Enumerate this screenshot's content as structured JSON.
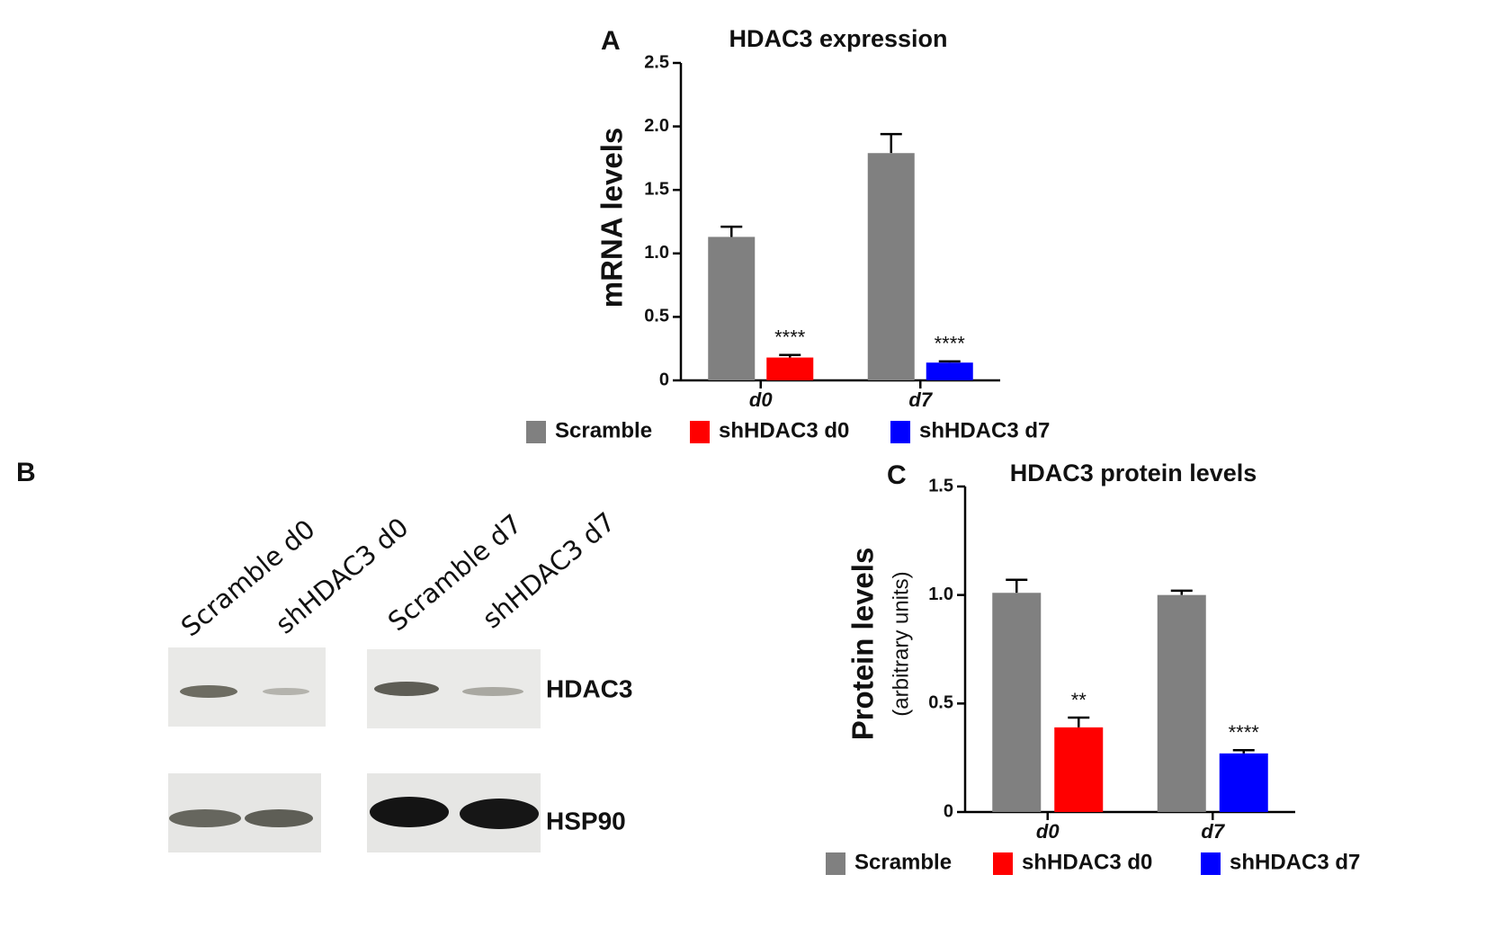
{
  "chart_data": [
    {
      "type": "bar",
      "panel_label": "A",
      "title": "HDAC3 expression",
      "y_label": "mRNA levels",
      "categories": [
        "d0",
        "d7"
      ],
      "series": [
        {
          "name": "Scramble",
          "color": "#808080",
          "values": [
            1.13,
            1.79
          ],
          "errors": [
            0.08,
            0.15
          ],
          "significance": [
            null,
            null
          ]
        },
        {
          "name": "shHDAC3 d0",
          "color": "#ff0000",
          "values": [
            0.18,
            null
          ],
          "errors": [
            0.02,
            null
          ],
          "significance": [
            "****",
            null
          ]
        },
        {
          "name": "shHDAC3 d7",
          "color": "#0000ff",
          "values": [
            null,
            0.14
          ],
          "errors": [
            null,
            0.01
          ],
          "significance": [
            null,
            "****"
          ]
        }
      ],
      "ylim": [
        0,
        2.5
      ],
      "yticks": [
        0,
        0.5,
        {
          "value": 1,
          "label": "1.0"
        },
        1.5,
        {
          "value": 2,
          "label": "2.0"
        },
        2.5
      ]
    },
    {
      "type": "bar",
      "panel_label": "C",
      "title": "HDAC3 protein levels",
      "y_label": "Protein levels",
      "y_sublabel": "(arbitrary units)",
      "categories": [
        "d0",
        "d7"
      ],
      "series": [
        {
          "name": "Scramble",
          "color": "#808080",
          "values": [
            1.01,
            1.0
          ],
          "errors": [
            0.06,
            0.02
          ],
          "significance": [
            null,
            null
          ]
        },
        {
          "name": "shHDAC3 d0",
          "color": "#ff0000",
          "values": [
            0.39,
            null
          ],
          "errors": [
            0.045,
            null
          ],
          "significance": [
            "**",
            null
          ]
        },
        {
          "name": "shHDAC3 d7",
          "color": "#0000ff",
          "values": [
            null,
            0.27
          ],
          "errors": [
            null,
            0.015
          ],
          "significance": [
            null,
            "****"
          ]
        }
      ],
      "ylim": [
        0,
        1.5
      ],
      "yticks": [
        0,
        0.5,
        {
          "value": 1,
          "label": "1.0"
        },
        1.5
      ]
    }
  ],
  "blot": {
    "panel_label": "B",
    "lanes": [
      "Scramble d0",
      "shHDAC3 d0",
      "Scramble d7",
      "shHDAC3 d7"
    ],
    "bands": [
      "HDAC3",
      "HSP90"
    ]
  }
}
